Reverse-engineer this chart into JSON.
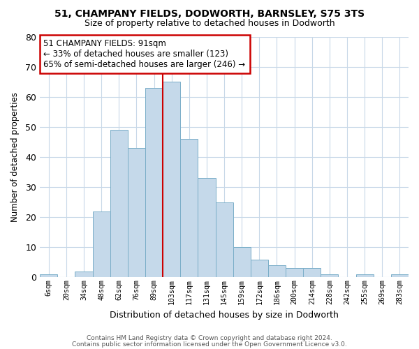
{
  "title": "51, CHAMPANY FIELDS, DODWORTH, BARNSLEY, S75 3TS",
  "subtitle": "Size of property relative to detached houses in Dodworth",
  "xlabel": "Distribution of detached houses by size in Dodworth",
  "ylabel": "Number of detached properties",
  "categories": [
    "6sqm",
    "20sqm",
    "34sqm",
    "48sqm",
    "62sqm",
    "76sqm",
    "89sqm",
    "103sqm",
    "117sqm",
    "131sqm",
    "145sqm",
    "159sqm",
    "172sqm",
    "186sqm",
    "200sqm",
    "214sqm",
    "228sqm",
    "242sqm",
    "255sqm",
    "269sqm",
    "283sqm"
  ],
  "values": [
    1,
    0,
    2,
    22,
    49,
    43,
    63,
    65,
    46,
    33,
    25,
    10,
    6,
    4,
    3,
    3,
    1,
    0,
    1,
    0,
    1
  ],
  "bar_color": "#c5d9ea",
  "bar_edge_color": "#7aaec8",
  "annotation_title": "51 CHAMPANY FIELDS: 91sqm",
  "annotation_line1": "← 33% of detached houses are smaller (123)",
  "annotation_line2": "65% of semi-detached houses are larger (246) →",
  "annotation_box_color": "#ffffff",
  "annotation_box_edge": "#cc0000",
  "marker_line_color": "#cc0000",
  "footer1": "Contains HM Land Registry data © Crown copyright and database right 2024.",
  "footer2": "Contains public sector information licensed under the Open Government Licence v3.0.",
  "ylim": [
    0,
    80
  ],
  "yticks": [
    0,
    10,
    20,
    30,
    40,
    50,
    60,
    70,
    80
  ],
  "property_bin_index": 6,
  "background_color": "#ffffff",
  "grid_color": "#c8d8e8"
}
